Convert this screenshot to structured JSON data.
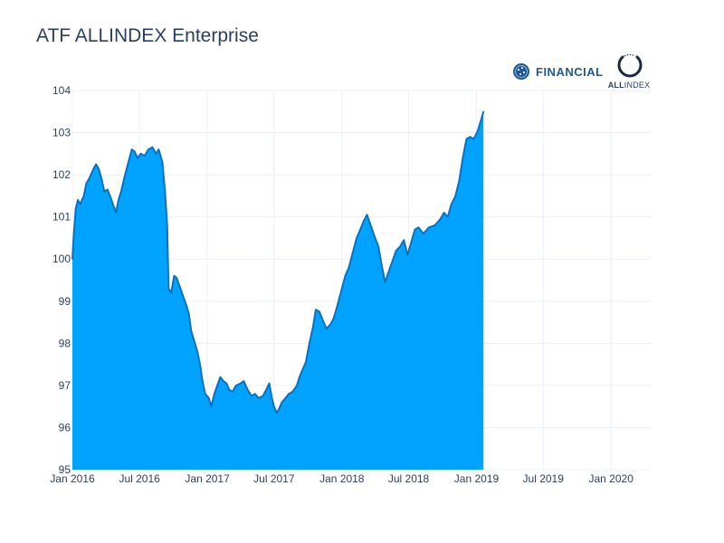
{
  "chart_data": {
    "type": "area",
    "title": "ATF ALLINDEX Enterprise",
    "xlabel": "",
    "ylabel": "",
    "x_range": [
      "2016-01-01",
      "2020-04-20"
    ],
    "ylim": [
      95,
      104
    ],
    "y_ticks": [
      95,
      96,
      97,
      98,
      99,
      100,
      101,
      102,
      103,
      104
    ],
    "x_ticks": [
      {
        "date": "2016-01-01",
        "label": "Jan 2016"
      },
      {
        "date": "2016-07-01",
        "label": "Jul 2016"
      },
      {
        "date": "2017-01-01",
        "label": "Jan 2017"
      },
      {
        "date": "2017-07-01",
        "label": "Jul 2017"
      },
      {
        "date": "2018-01-01",
        "label": "Jan 2018"
      },
      {
        "date": "2018-07-01",
        "label": "Jul 2018"
      },
      {
        "date": "2019-01-01",
        "label": "Jan 2019"
      },
      {
        "date": "2019-07-01",
        "label": "Jul 2019"
      },
      {
        "date": "2020-01-01",
        "label": "Jan 2020"
      }
    ],
    "grid": true,
    "fill_color": "#00a3ff",
    "line_color": "#0b6fc0",
    "series": [
      {
        "points": [
          [
            "2016-01-01",
            100.0
          ],
          [
            "2016-01-05",
            100.6
          ],
          [
            "2016-01-10",
            101.2
          ],
          [
            "2016-01-16",
            101.4
          ],
          [
            "2016-01-22",
            101.3
          ],
          [
            "2016-02-01",
            101.5
          ],
          [
            "2016-02-08",
            101.8
          ],
          [
            "2016-02-15",
            101.9
          ],
          [
            "2016-02-25",
            102.1
          ],
          [
            "2016-03-05",
            102.25
          ],
          [
            "2016-03-12",
            102.15
          ],
          [
            "2016-03-20",
            101.9
          ],
          [
            "2016-03-28",
            101.6
          ],
          [
            "2016-04-05",
            101.65
          ],
          [
            "2016-04-12",
            101.5
          ],
          [
            "2016-04-20",
            101.3
          ],
          [
            "2016-04-28",
            101.1
          ],
          [
            "2016-05-05",
            101.4
          ],
          [
            "2016-05-12",
            101.6
          ],
          [
            "2016-05-20",
            101.9
          ],
          [
            "2016-06-01",
            102.3
          ],
          [
            "2016-06-10",
            102.6
          ],
          [
            "2016-06-18",
            102.55
          ],
          [
            "2016-06-25",
            102.4
          ],
          [
            "2016-07-05",
            102.5
          ],
          [
            "2016-07-15",
            102.45
          ],
          [
            "2016-07-25",
            102.6
          ],
          [
            "2016-08-05",
            102.65
          ],
          [
            "2016-08-15",
            102.5
          ],
          [
            "2016-08-22",
            102.6
          ],
          [
            "2016-09-01",
            102.3
          ],
          [
            "2016-09-08",
            101.6
          ],
          [
            "2016-09-14",
            100.8
          ],
          [
            "2016-09-18",
            99.3
          ],
          [
            "2016-09-25",
            99.2
          ],
          [
            "2016-10-03",
            99.6
          ],
          [
            "2016-10-10",
            99.55
          ],
          [
            "2016-10-20",
            99.3
          ],
          [
            "2016-10-28",
            99.1
          ],
          [
            "2016-11-05",
            98.9
          ],
          [
            "2016-11-12",
            98.7
          ],
          [
            "2016-11-18",
            98.3
          ],
          [
            "2016-11-25",
            98.1
          ],
          [
            "2016-12-05",
            97.8
          ],
          [
            "2016-12-12",
            97.5
          ],
          [
            "2016-12-19",
            97.1
          ],
          [
            "2016-12-26",
            96.8
          ],
          [
            "2017-01-05",
            96.7
          ],
          [
            "2017-01-12",
            96.5
          ],
          [
            "2017-01-20",
            96.8
          ],
          [
            "2017-01-28",
            97.0
          ],
          [
            "2017-02-05",
            97.2
          ],
          [
            "2017-02-14",
            97.1
          ],
          [
            "2017-02-22",
            97.05
          ],
          [
            "2017-03-01",
            96.9
          ],
          [
            "2017-03-10",
            96.85
          ],
          [
            "2017-03-20",
            97.0
          ],
          [
            "2017-04-01",
            97.05
          ],
          [
            "2017-04-10",
            97.1
          ],
          [
            "2017-04-20",
            96.9
          ],
          [
            "2017-05-01",
            96.75
          ],
          [
            "2017-05-10",
            96.8
          ],
          [
            "2017-05-20",
            96.7
          ],
          [
            "2017-06-01",
            96.75
          ],
          [
            "2017-06-10",
            96.9
          ],
          [
            "2017-06-18",
            97.05
          ],
          [
            "2017-06-25",
            96.7
          ],
          [
            "2017-07-01",
            96.5
          ],
          [
            "2017-07-08",
            96.35
          ],
          [
            "2017-07-15",
            96.45
          ],
          [
            "2017-07-22",
            96.6
          ],
          [
            "2017-08-01",
            96.7
          ],
          [
            "2017-08-10",
            96.8
          ],
          [
            "2017-08-20",
            96.85
          ],
          [
            "2017-09-01",
            97.0
          ],
          [
            "2017-09-08",
            97.2
          ],
          [
            "2017-09-15",
            97.35
          ],
          [
            "2017-09-25",
            97.55
          ],
          [
            "2017-10-05",
            98.0
          ],
          [
            "2017-10-15",
            98.4
          ],
          [
            "2017-10-22",
            98.8
          ],
          [
            "2017-11-01",
            98.75
          ],
          [
            "2017-11-10",
            98.55
          ],
          [
            "2017-11-20",
            98.35
          ],
          [
            "2017-12-01",
            98.45
          ],
          [
            "2017-12-10",
            98.6
          ],
          [
            "2017-12-20",
            98.9
          ],
          [
            "2018-01-01",
            99.3
          ],
          [
            "2018-01-10",
            99.6
          ],
          [
            "2018-01-20",
            99.8
          ],
          [
            "2018-02-01",
            100.2
          ],
          [
            "2018-02-10",
            100.5
          ],
          [
            "2018-02-20",
            100.7
          ],
          [
            "2018-03-01",
            100.9
          ],
          [
            "2018-03-10",
            101.05
          ],
          [
            "2018-03-20",
            100.8
          ],
          [
            "2018-04-01",
            100.5
          ],
          [
            "2018-04-10",
            100.3
          ],
          [
            "2018-04-20",
            99.8
          ],
          [
            "2018-04-28",
            99.45
          ],
          [
            "2018-05-08",
            99.7
          ],
          [
            "2018-05-18",
            99.95
          ],
          [
            "2018-05-28",
            100.2
          ],
          [
            "2018-06-08",
            100.3
          ],
          [
            "2018-06-18",
            100.45
          ],
          [
            "2018-06-28",
            100.1
          ],
          [
            "2018-07-08",
            100.4
          ],
          [
            "2018-07-18",
            100.7
          ],
          [
            "2018-07-28",
            100.75
          ],
          [
            "2018-08-10",
            100.6
          ],
          [
            "2018-08-25",
            100.75
          ],
          [
            "2018-09-10",
            100.8
          ],
          [
            "2018-09-25",
            100.95
          ],
          [
            "2018-10-05",
            101.1
          ],
          [
            "2018-10-15",
            101.0
          ],
          [
            "2018-10-25",
            101.3
          ],
          [
            "2018-11-05",
            101.5
          ],
          [
            "2018-11-15",
            101.85
          ],
          [
            "2018-11-25",
            102.4
          ],
          [
            "2018-12-05",
            102.85
          ],
          [
            "2018-12-15",
            102.9
          ],
          [
            "2018-12-25",
            102.85
          ],
          [
            "2019-01-05",
            103.05
          ],
          [
            "2019-01-15",
            103.35
          ],
          [
            "2019-01-20",
            103.5
          ]
        ]
      }
    ]
  },
  "logos": {
    "financial_text": "FINANCIAL",
    "allindex_text_bold": "ALL",
    "allindex_text_regular": "INDEX"
  }
}
